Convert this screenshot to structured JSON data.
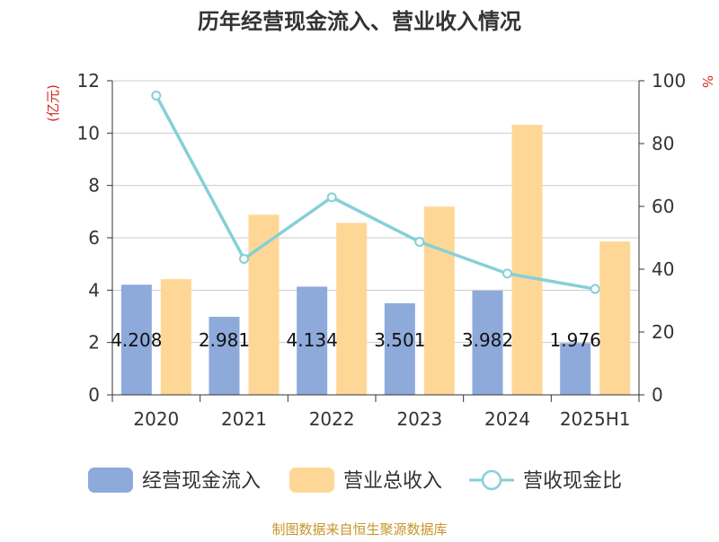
{
  "chart_data": {
    "type": "bar",
    "title": "历年经营现金流入、营业收入情况",
    "y_left_unit": "(亿元)",
    "y_right_unit": "%",
    "categories": [
      "2020",
      "2021",
      "2022",
      "2023",
      "2024",
      "2025H1"
    ],
    "ylim_left": [
      0,
      12
    ],
    "yticks_left": [
      "0",
      "2",
      "4",
      "6",
      "8",
      "10",
      "12"
    ],
    "ylim_right": [
      0,
      100
    ],
    "yticks_right": [
      "0",
      "20",
      "40",
      "60",
      "80",
      "100"
    ],
    "grid": true,
    "legend_position": "bottom",
    "series": [
      {
        "name": "经营现金流入",
        "kind": "bar",
        "axis": "left",
        "color": "#8eaadb",
        "values": [
          4.208,
          2.981,
          4.134,
          3.501,
          3.982,
          1.976
        ],
        "labels": [
          "4.208",
          "2.981",
          "4.134",
          "3.501",
          "3.982",
          "1.976"
        ]
      },
      {
        "name": "营业总收入",
        "kind": "bar",
        "axis": "left",
        "color": "#fed797",
        "values": [
          4.42,
          6.88,
          6.57,
          7.19,
          10.32,
          5.86
        ]
      },
      {
        "name": "营收现金比",
        "kind": "line",
        "axis": "right",
        "color": "#86d0d8",
        "values": [
          95.3,
          43.3,
          62.9,
          48.7,
          38.6,
          33.7
        ]
      }
    ],
    "source": "制图数据来自恒生聚源数据库"
  }
}
